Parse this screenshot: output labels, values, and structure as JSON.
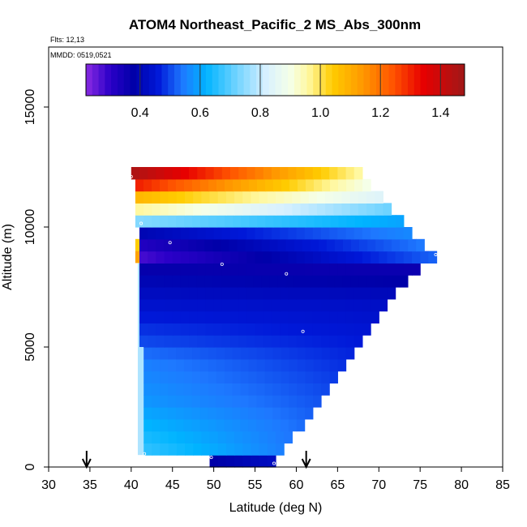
{
  "header": {
    "title": "ATOM4 Northeast_Pacific_2 MS_Abs_300nm",
    "flights": "Flts: 12,13",
    "mmdd": "MMDD: 0519,0521"
  },
  "colorbar": {
    "min": 0.22,
    "max": 1.48,
    "ticks": [
      0.4,
      0.6,
      0.8,
      1.0,
      1.2,
      1.4
    ],
    "tick_labels": [
      "0.4",
      "0.6",
      "0.8",
      "1.0",
      "1.2",
      "1.4"
    ],
    "stops": [
      {
        "v": 0.22,
        "c": "#8a2be2"
      },
      {
        "v": 0.3,
        "c": "#2b00c8"
      },
      {
        "v": 0.38,
        "c": "#0000a8"
      },
      {
        "v": 0.46,
        "c": "#0018d8"
      },
      {
        "v": 0.54,
        "c": "#1e78ff"
      },
      {
        "v": 0.62,
        "c": "#00b4ff"
      },
      {
        "v": 0.72,
        "c": "#6fd3ff"
      },
      {
        "v": 0.82,
        "c": "#d8f0ff"
      },
      {
        "v": 0.9,
        "c": "#f5ffe8"
      },
      {
        "v": 0.96,
        "c": "#fff8a0"
      },
      {
        "v": 1.04,
        "c": "#ffcc00"
      },
      {
        "v": 1.14,
        "c": "#ff9900"
      },
      {
        "v": 1.24,
        "c": "#ff5500"
      },
      {
        "v": 1.34,
        "c": "#e80000"
      },
      {
        "v": 1.48,
        "c": "#a01818"
      }
    ]
  },
  "chart_data": {
    "type": "heatmap",
    "title": "ATOM4 Northeast_Pacific_2 MS_Abs_300nm",
    "xlabel": "Latitude (deg N)",
    "ylabel": "Altitude (m)",
    "xlim": [
      30,
      85
    ],
    "ylim": [
      0,
      17500
    ],
    "xticks": [
      30,
      35,
      40,
      45,
      50,
      55,
      60,
      65,
      70,
      75,
      80,
      85
    ],
    "yticks": [
      0,
      5000,
      10000,
      15000
    ],
    "grid": false,
    "rows": [
      {
        "y0": 0,
        "y1": 500,
        "x0": 49.5,
        "x1": 57.5,
        "v0": 0.38,
        "v1": 0.42
      },
      {
        "y0": 500,
        "y1": 1000,
        "x0": 41.5,
        "x1": 58.5,
        "v0": 0.66,
        "v1": 0.55
      },
      {
        "y0": 1000,
        "y1": 1500,
        "x0": 41.5,
        "x1": 59.5,
        "v0": 0.64,
        "v1": 0.54
      },
      {
        "y0": 1500,
        "y1": 2000,
        "x0": 41.5,
        "x1": 61.0,
        "v0": 0.62,
        "v1": 0.53
      },
      {
        "y0": 2000,
        "y1": 2500,
        "x0": 41.5,
        "x1": 62.0,
        "v0": 0.6,
        "v1": 0.52
      },
      {
        "y0": 2500,
        "y1": 3000,
        "x0": 41.5,
        "x1": 63.0,
        "v0": 0.58,
        "v1": 0.51
      },
      {
        "y0": 3000,
        "y1": 3500,
        "x0": 41.5,
        "x1": 64.0,
        "v0": 0.57,
        "v1": 0.5
      },
      {
        "y0": 3500,
        "y1": 4000,
        "x0": 41.5,
        "x1": 65.0,
        "v0": 0.56,
        "v1": 0.49
      },
      {
        "y0": 4000,
        "y1": 4500,
        "x0": 41.5,
        "x1": 66.0,
        "v0": 0.55,
        "v1": 0.48
      },
      {
        "y0": 4500,
        "y1": 5000,
        "x0": 41.5,
        "x1": 67.0,
        "v0": 0.53,
        "v1": 0.47
      },
      {
        "y0": 5000,
        "y1": 5500,
        "x0": 41.0,
        "x1": 68.0,
        "v0": 0.5,
        "v1": 0.46
      },
      {
        "y0": 5500,
        "y1": 6000,
        "x0": 41.0,
        "x1": 69.0,
        "v0": 0.48,
        "v1": 0.45
      },
      {
        "y0": 6000,
        "y1": 6500,
        "x0": 41.0,
        "x1": 70.0,
        "v0": 0.46,
        "v1": 0.44
      },
      {
        "y0": 6500,
        "y1": 7000,
        "x0": 41.0,
        "x1": 71.0,
        "v0": 0.44,
        "v1": 0.43
      },
      {
        "y0": 7000,
        "y1": 7500,
        "x0": 41.0,
        "x1": 72.0,
        "v0": 0.42,
        "v1": 0.41
      },
      {
        "y0": 7500,
        "y1": 8000,
        "x0": 41.0,
        "x1": 73.5,
        "v0": 0.4,
        "v1": 0.38
      },
      {
        "y0": 8000,
        "y1": 8500,
        "x0": 41.0,
        "x1": 75.0,
        "v0": 0.37,
        "v1": 0.36
      },
      {
        "y0": 8500,
        "y1": 9000,
        "x0": 41.0,
        "x1": 77.0,
        "v0": 0.28,
        "v1": 0.52
      },
      {
        "y0": 9000,
        "y1": 9500,
        "x0": 41.0,
        "x1": 75.5,
        "v0": 0.32,
        "v1": 0.54
      },
      {
        "y0": 9500,
        "y1": 10000,
        "x0": 41.0,
        "x1": 74.0,
        "v0": 0.4,
        "v1": 0.56
      },
      {
        "y0": 10000,
        "y1": 10500,
        "x0": 40.5,
        "x1": 73.0,
        "v0": 0.74,
        "v1": 0.6
      },
      {
        "y0": 10500,
        "y1": 11000,
        "x0": 40.5,
        "x1": 71.5,
        "v0": 0.96,
        "v1": 0.72
      },
      {
        "y0": 11000,
        "y1": 11500,
        "x0": 40.5,
        "x1": 70.5,
        "v0": 1.08,
        "v1": 0.84
      },
      {
        "y0": 11500,
        "y1": 12000,
        "x0": 40.5,
        "x1": 69.0,
        "v0": 1.3,
        "v1": 0.9
      },
      {
        "y0": 12000,
        "y1": 12500,
        "x0": 40.0,
        "x1": 68.0,
        "v0": 1.45,
        "v1": 0.96
      }
    ],
    "left_strip": [
      {
        "y0": 500,
        "y1": 5000,
        "x0": 40.8,
        "x1": 41.5,
        "v": 0.78
      },
      {
        "y0": 5000,
        "y1": 8500,
        "x0": 40.8,
        "x1": 41.0,
        "v": 0.78
      },
      {
        "y0": 8500,
        "y1": 9000,
        "x0": 40.5,
        "x1": 41.0,
        "v": 1.12
      },
      {
        "y0": 9000,
        "y1": 9500,
        "x0": 40.5,
        "x1": 41.0,
        "v": 1.04
      }
    ],
    "markers": [
      {
        "lat": 40.0,
        "alt": 12100
      },
      {
        "lat": 41.2,
        "alt": 10150
      },
      {
        "lat": 44.7,
        "alt": 9350
      },
      {
        "lat": 51.0,
        "alt": 8450
      },
      {
        "lat": 58.8,
        "alt": 8050
      },
      {
        "lat": 60.8,
        "alt": 5650
      },
      {
        "lat": 75.5,
        "alt": 8150
      },
      {
        "lat": 76.9,
        "alt": 8850
      },
      {
        "lat": 41.6,
        "alt": 550
      },
      {
        "lat": 49.7,
        "alt": 400
      },
      {
        "lat": 57.3,
        "alt": 150
      }
    ],
    "arrows": [
      {
        "lat": 34.6
      },
      {
        "lat": 61.2
      }
    ]
  }
}
